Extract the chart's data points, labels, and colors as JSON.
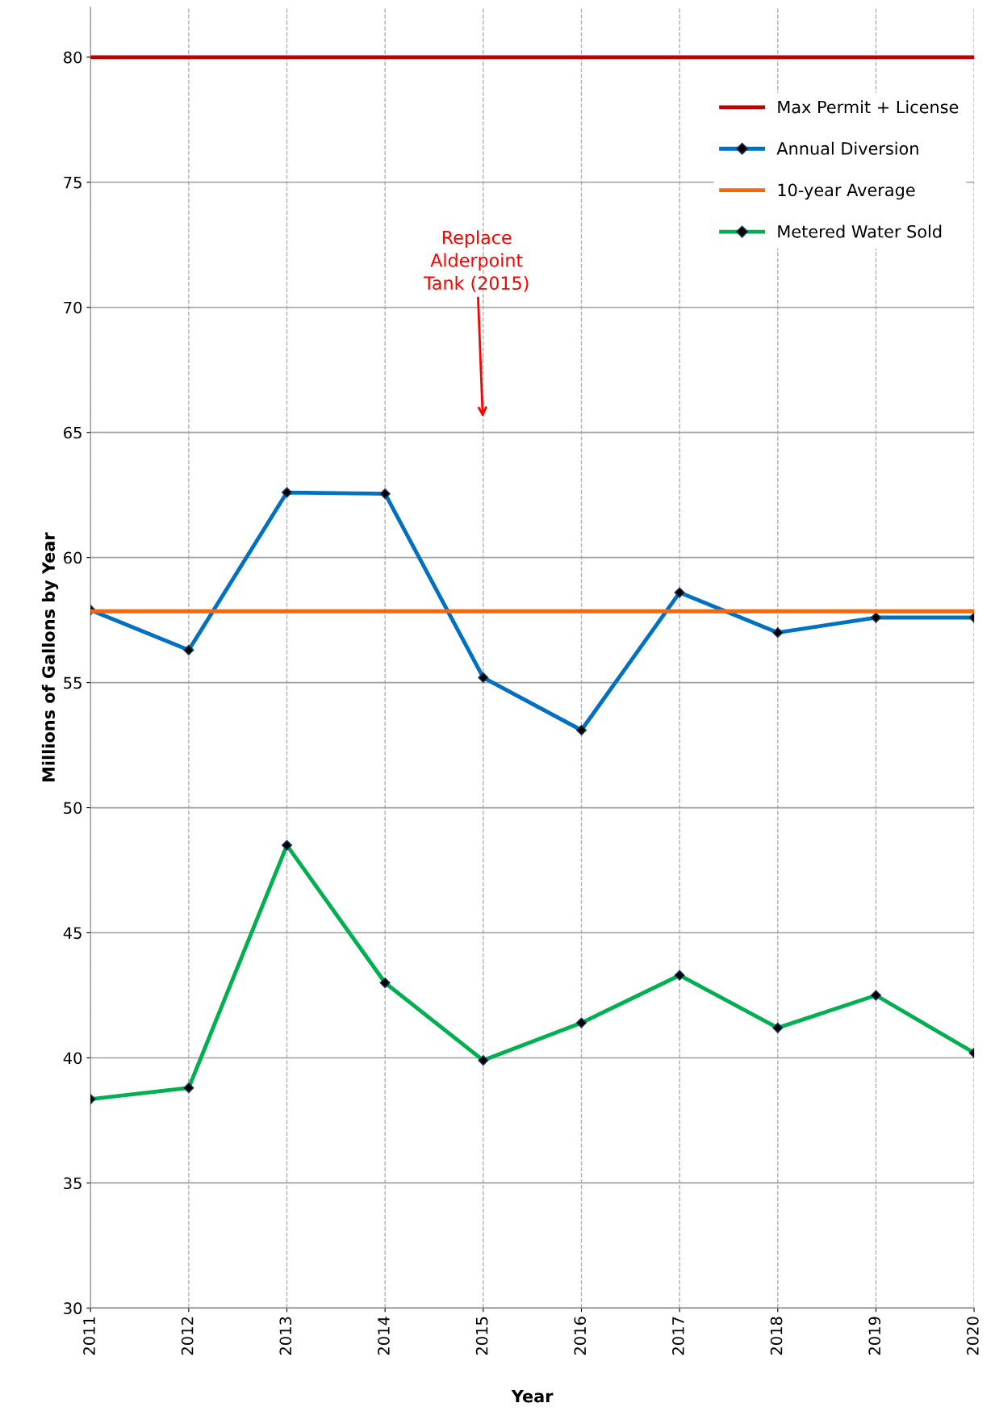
{
  "chart_data": {
    "type": "line",
    "xlabel": "Year",
    "ylabel": "Millions of Gallons by Year",
    "x": [
      2011,
      2012,
      2013,
      2014,
      2015,
      2016,
      2017,
      2018,
      2019,
      2020
    ],
    "series": [
      {
        "name": "Max Permit + License",
        "color": "#c00000",
        "values": [
          80,
          80,
          80,
          80,
          80,
          80,
          80,
          80,
          80,
          80
        ],
        "marker": "none"
      },
      {
        "name": "Annual Diversion",
        "color": "#0070c0",
        "values": [
          57.9,
          56.3,
          62.6,
          62.55,
          55.2,
          53.1,
          58.6,
          57.0,
          57.6,
          57.6
        ],
        "marker": "diamond"
      },
      {
        "name": "10-year Average",
        "color": "#ff6600",
        "values": [
          57.85,
          57.85,
          57.85,
          57.85,
          57.85,
          57.85,
          57.85,
          57.85,
          57.85,
          57.85
        ],
        "marker": "none"
      },
      {
        "name": "Metered Water Sold",
        "color": "#00b050",
        "values": [
          38.35,
          38.8,
          48.5,
          43.0,
          39.9,
          41.4,
          43.3,
          41.2,
          42.5,
          40.2
        ],
        "marker": "diamond"
      }
    ],
    "xlim": [
      2011,
      2020
    ],
    "xticks": [
      2011,
      2012,
      2013,
      2014,
      2015,
      2016,
      2017,
      2018,
      2019,
      2020
    ],
    "ylim": [
      30,
      82
    ],
    "yticks": [
      30,
      35,
      40,
      45,
      50,
      55,
      60,
      65,
      70,
      75,
      80
    ],
    "grid": true,
    "legend": "top right",
    "line_style": "solid",
    "annotations": [
      "Replace\nAlderpoint\nTank (2015)"
    ]
  }
}
